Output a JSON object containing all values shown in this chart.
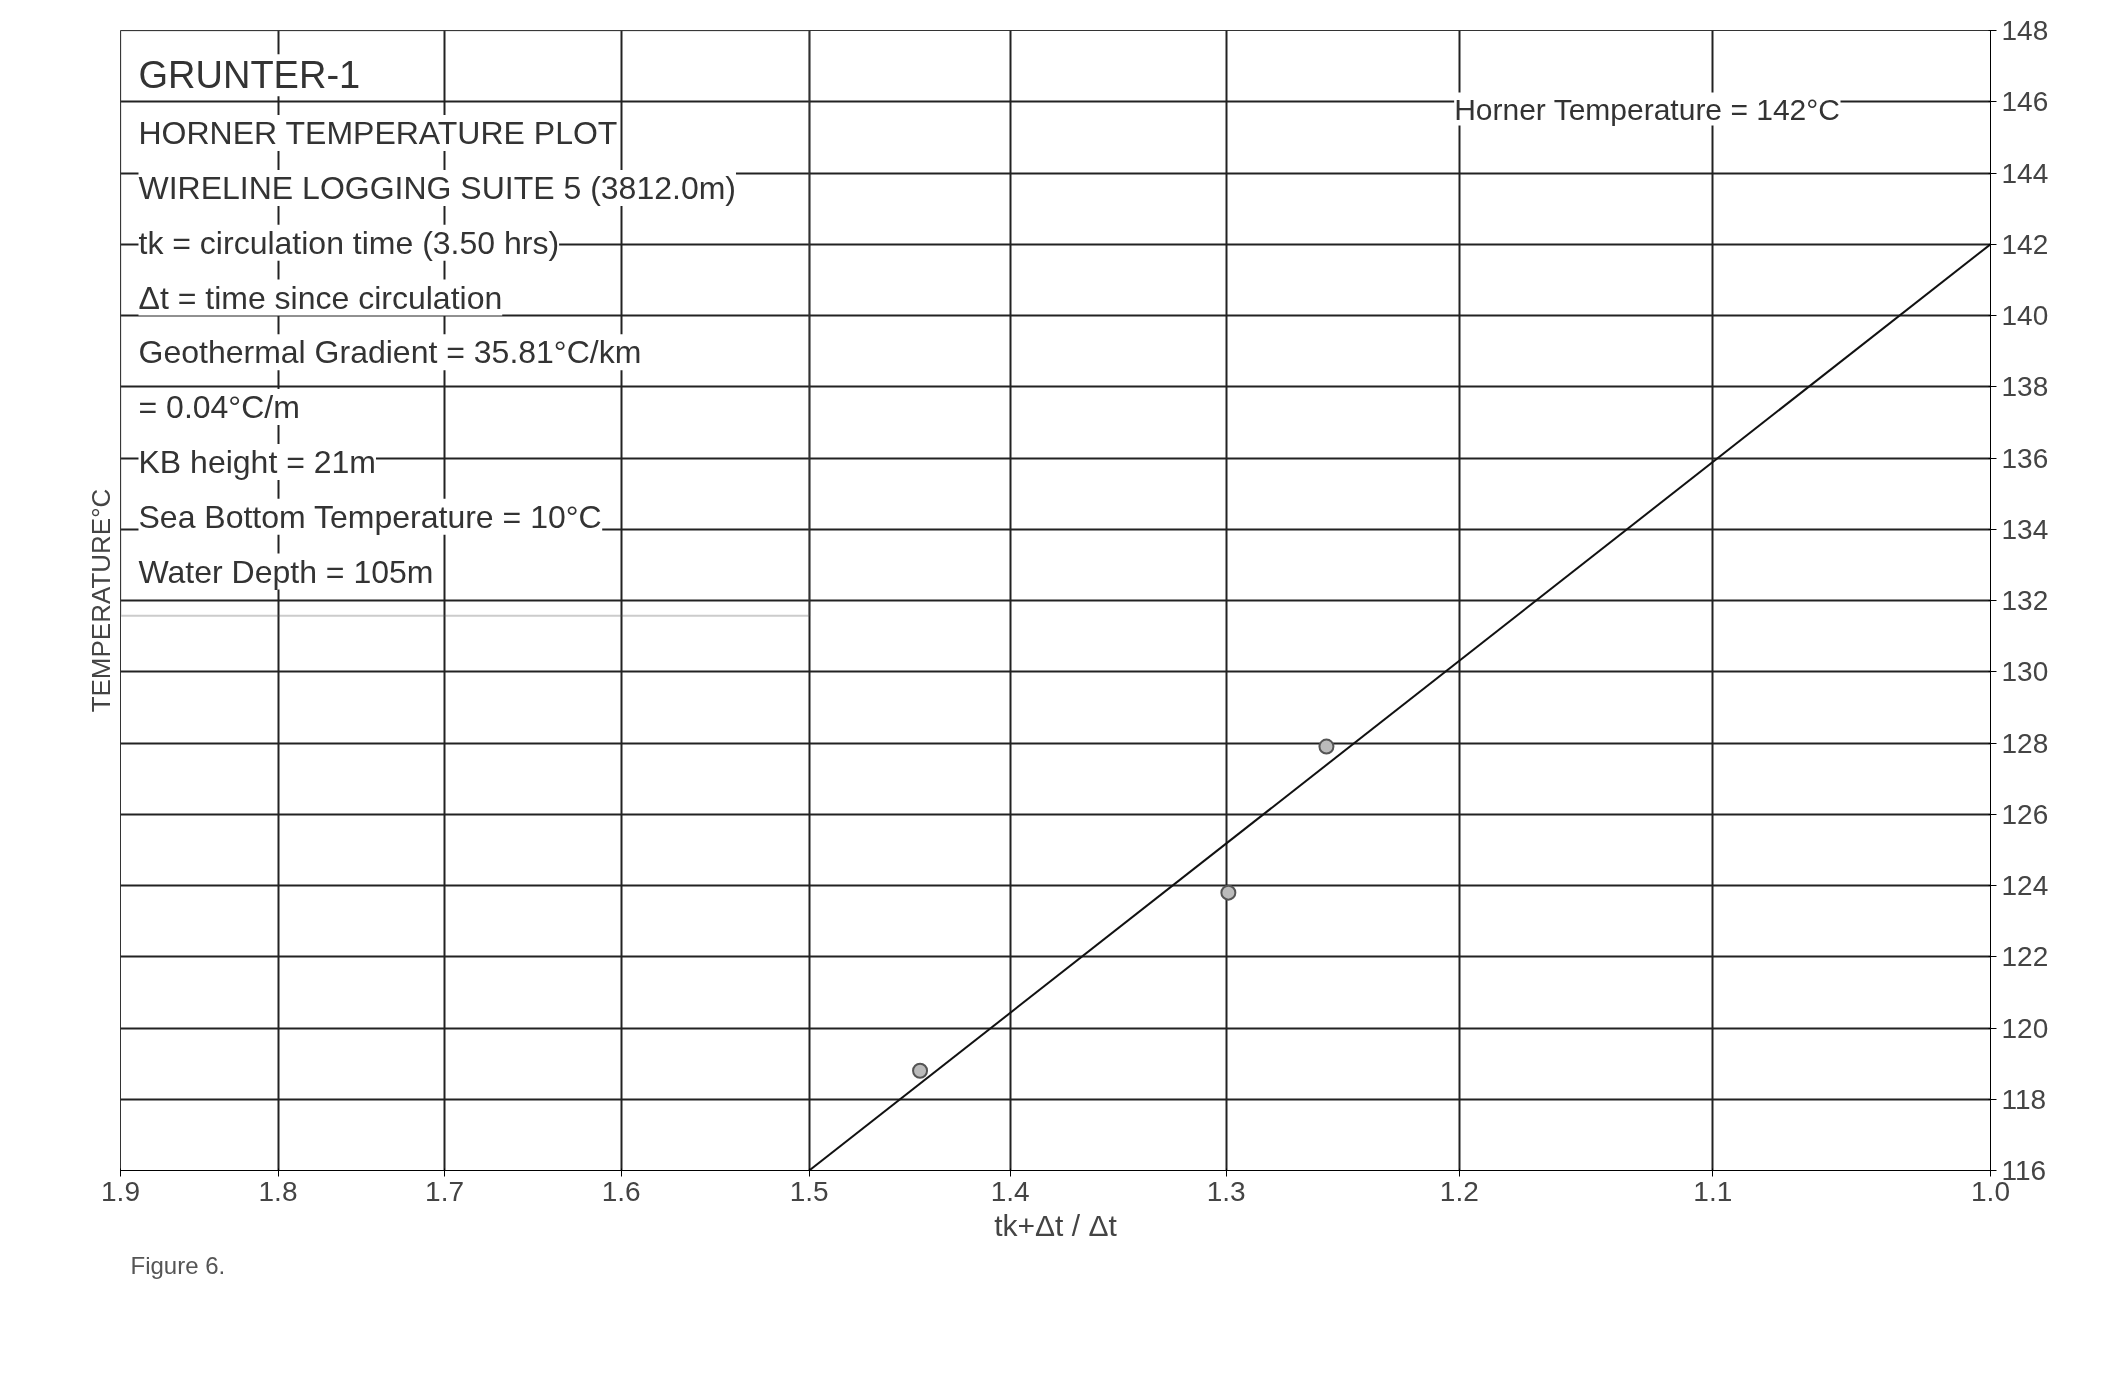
{
  "chart_data": {
    "type": "scatter",
    "title": "GRUNTER-1",
    "subtitle": "HORNER TEMPERATURE PLOT",
    "xlabel": "tk+Δt / Δt",
    "ylabel": "TEMPERATURE°C",
    "log": "x",
    "xlim": [
      1.9,
      1.0
    ],
    "xticks": [
      1.9,
      1.8,
      1.7,
      1.6,
      1.5,
      1.4,
      1.3,
      1.2,
      1.1,
      {
        "value": 1.0,
        "label": "1.0"
      }
    ],
    "ylim": [
      116,
      148
    ],
    "yticks": [
      116,
      118,
      120,
      122,
      124,
      126,
      128,
      130,
      132,
      134,
      136,
      138,
      140,
      142,
      144,
      146,
      148
    ],
    "grid": true,
    "series": [
      {
        "color": "#555555",
        "marker": "circle",
        "x": [
          1.444,
          1.299,
          1.256
        ],
        "values": [
          118.8,
          123.8,
          127.9
        ]
      },
      {
        "type": "line",
        "color": "#111111",
        "line_style": "solid",
        "marker": "none",
        "x": [
          1.5,
          1.0
        ],
        "values": [
          116,
          142
        ]
      }
    ],
    "annotations": [
      "WIRELINE LOGGING SUITE 5 (3812.0m)",
      "tk = circulation time (3.50 hrs)",
      "Δt = time since circulation",
      "Geothermal Gradient = 35.81°C/km",
      "= 0.04°C/m",
      "KB height = 21m",
      "Sea Bottom Temperature = 10°C",
      "Water Depth = 105m",
      "Horner Temperature = 142°C",
      "Figure 6."
    ]
  }
}
